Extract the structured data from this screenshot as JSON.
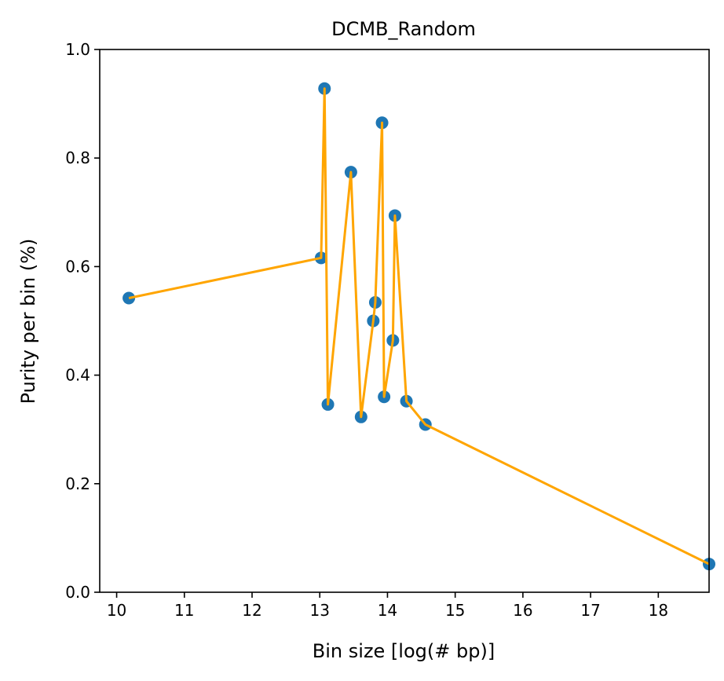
{
  "chart_data": {
    "type": "scatter",
    "title": "DCMB_Random",
    "xlabel": "Bin size [log(# bp)]",
    "ylabel": "Purity per bin (%)",
    "xlim": [
      9.75,
      18.75
    ],
    "ylim": [
      0.0,
      1.0
    ],
    "xticks": [
      10,
      11,
      12,
      13,
      14,
      15,
      16,
      17,
      18
    ],
    "xtick_labels": [
      "10",
      "11",
      "12",
      "13",
      "14",
      "15",
      "16",
      "17",
      "18"
    ],
    "yticks": [
      0.0,
      0.2,
      0.4,
      0.6,
      0.8,
      1.0
    ],
    "ytick_labels": [
      "0.0",
      "0.2",
      "0.4",
      "0.6",
      "0.8",
      "1.0"
    ],
    "grid": false,
    "colors": {
      "points": "#1f77b4",
      "line": "#ffa500"
    },
    "series": [
      {
        "style": "scatter+line",
        "points": [
          {
            "x": 10.18,
            "y": 0.542
          },
          {
            "x": 13.02,
            "y": 0.616
          },
          {
            "x": 13.07,
            "y": 0.928
          },
          {
            "x": 13.12,
            "y": 0.346
          },
          {
            "x": 13.46,
            "y": 0.774
          },
          {
            "x": 13.61,
            "y": 0.323
          },
          {
            "x": 13.79,
            "y": 0.5
          },
          {
            "x": 13.82,
            "y": 0.534
          },
          {
            "x": 13.92,
            "y": 0.865
          },
          {
            "x": 13.95,
            "y": 0.36
          },
          {
            "x": 14.08,
            "y": 0.464
          },
          {
            "x": 14.11,
            "y": 0.694
          },
          {
            "x": 14.28,
            "y": 0.352
          },
          {
            "x": 14.56,
            "y": 0.309
          },
          {
            "x": 18.75,
            "y": 0.052
          }
        ]
      }
    ]
  }
}
